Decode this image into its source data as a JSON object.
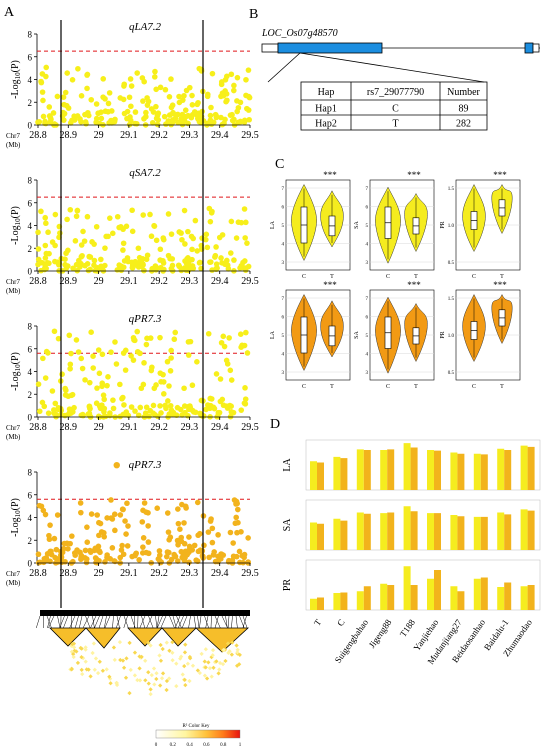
{
  "panels": {
    "A": "A",
    "B": "B",
    "C": "C",
    "D": "D"
  },
  "panel_a": {
    "chr_label": "Chr7",
    "mb_label": "(Mb)",
    "ylabel_main": "-Log",
    "ylabel_sub": "10",
    "ylabel_tail": "(P)",
    "x_ticks": [
      "28.8",
      "28.9",
      "29",
      "29.1",
      "29.2",
      "29.3",
      "29.4",
      "29.5"
    ],
    "tracks": [
      {
        "title": "qLA7.2",
        "ylim": [
          0,
          8
        ],
        "yticks": [
          "0",
          "2",
          "4",
          "6",
          "8"
        ],
        "threshold": 6.5,
        "color": "#f7ef1a"
      },
      {
        "title": "qSA7.2",
        "ylim": [
          0,
          8
        ],
        "yticks": [
          "0",
          "2",
          "4",
          "6",
          "8"
        ],
        "threshold": 6.5,
        "color": "#f7ef1a"
      },
      {
        "title": "qPR7.3",
        "ylim": [
          0,
          8
        ],
        "yticks": [
          "0",
          "2",
          "4",
          "6",
          "8"
        ],
        "threshold": 5.6,
        "color": "#f7ef1a"
      },
      {
        "title": "qPR7.3",
        "ylim": [
          0,
          8
        ],
        "yticks": [
          "0",
          "2",
          "4",
          "6",
          "8"
        ],
        "threshold": 5.6,
        "color": "#f2b31c"
      }
    ],
    "ld_key_title": "R² Color Key",
    "ld_key_ticks": [
      "0",
      "0.2",
      "0.4",
      "0.6",
      "0.8",
      "1"
    ]
  },
  "panel_b": {
    "gene": "LOC_Os07g48570",
    "headers": [
      "Hap",
      "rs7_29077790",
      "Number"
    ],
    "rows": [
      [
        "Hap1",
        "C",
        "89"
      ],
      [
        "Hap2",
        "T",
        "282"
      ]
    ]
  },
  "panel_c": {
    "sig": "***",
    "groups": [
      "C",
      "T"
    ],
    "rows": [
      {
        "color": "#f5ec1f",
        "plots": [
          {
            "ylabel": "LA",
            "yticks": [
              "3",
              "4",
              "5",
              "6",
              "7"
            ]
          },
          {
            "ylabel": "SA",
            "yticks": [
              "3",
              "4",
              "5",
              "6",
              "7"
            ]
          },
          {
            "ylabel": "PR",
            "yticks": [
              "0.5",
              "1.0",
              "1.5"
            ]
          }
        ]
      },
      {
        "color": "#f29a14",
        "plots": [
          {
            "ylabel": "LA",
            "yticks": [
              "3",
              "4",
              "5",
              "6",
              "7"
            ]
          },
          {
            "ylabel": "SA",
            "yticks": [
              "3",
              "4",
              "5",
              "6",
              "7"
            ]
          },
          {
            "ylabel": "PR",
            "yticks": [
              "0.5",
              "1.0",
              "1.5"
            ]
          }
        ]
      }
    ]
  },
  "chart_data": {
    "type": "bar",
    "categories": [
      "T",
      "C",
      "Suigengbahao",
      "Jigeng88",
      "T188",
      "Yanjiehao",
      "Mudanjiang27",
      "Beidaosanhao",
      "Baidalu-1",
      "Zhumaodao"
    ],
    "panels": [
      {
        "ylabel": "LA",
        "ylim": [
          0,
          8
        ],
        "series": [
          {
            "values": [
              4.6,
              5.3,
              6.5,
              6.4,
              7.5,
              6.4,
              6.0,
              5.8,
              6.6,
              7.1
            ]
          },
          {
            "values": [
              4.4,
              5.1,
              6.4,
              6.5,
              6.8,
              6.3,
              5.8,
              5.7,
              6.4,
              6.9
            ]
          }
        ]
      },
      {
        "ylabel": "SA",
        "ylim": [
          0,
          8
        ],
        "series": [
          {
            "values": [
              4.4,
              5.0,
              6.0,
              5.9,
              7.0,
              5.9,
              5.6,
              5.3,
              6.0,
              6.5
            ]
          },
          {
            "values": [
              4.2,
              4.7,
              5.8,
              6.0,
              6.2,
              5.9,
              5.4,
              5.3,
              5.7,
              6.3
            ]
          }
        ]
      },
      {
        "ylabel": "PR",
        "ylim": [
          0,
          2
        ],
        "series": [
          {
            "values": [
              0.45,
              0.68,
              0.75,
              1.05,
              1.75,
              1.25,
              0.95,
              1.25,
              0.92,
              0.95
            ]
          },
          {
            "values": [
              0.5,
              0.7,
              0.95,
              1.0,
              1.0,
              1.6,
              0.75,
              1.3,
              1.1,
              1.0
            ]
          }
        ]
      }
    ],
    "colors": [
      "#f5ec1f",
      "#f2b31c"
    ]
  }
}
